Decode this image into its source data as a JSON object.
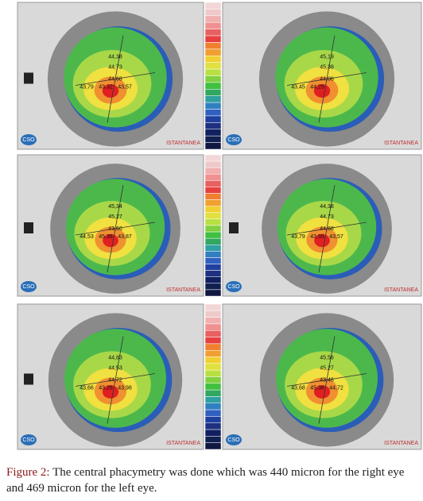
{
  "figure": {
    "panels": [
      {
        "logo": "CSO",
        "label": "ISTANTANEA",
        "readings": [
          "44,38",
          "44,73",
          "44,68",
          "43,79",
          "43,32",
          "43,57"
        ]
      },
      {
        "logo": "CSO",
        "label": "ISTANTANEA",
        "readings": [
          "45,19",
          "45,38",
          "44,06",
          "43,45",
          "44,25"
        ]
      },
      {
        "logo": "CSO",
        "label": "ISTANTANEA",
        "readings": [
          "45,34",
          "45,27",
          "43,66",
          "44,53",
          "45,36",
          "43,87"
        ]
      },
      {
        "logo": "CSO",
        "label": "ISTANTANEA",
        "readings": [
          "44,38",
          "44,73",
          "44,68",
          "43,79",
          "43,55",
          "43,57"
        ]
      },
      {
        "logo": "CSO",
        "label": "ISTANTANEA",
        "readings": [
          "44,83",
          "44,53",
          "44,72",
          "43,66",
          "43,26",
          "43,98"
        ]
      },
      {
        "logo": "CSO",
        "label": "ISTANTANEA",
        "readings": [
          "45,56",
          "45,27",
          "43,48",
          "43,68",
          "45,36",
          "44,72"
        ]
      }
    ],
    "caption": {
      "label": "Figure 2:",
      "text": "The central phacymetry was done which was 440 micron for the right eye and 469 micron for the left eye."
    }
  }
}
